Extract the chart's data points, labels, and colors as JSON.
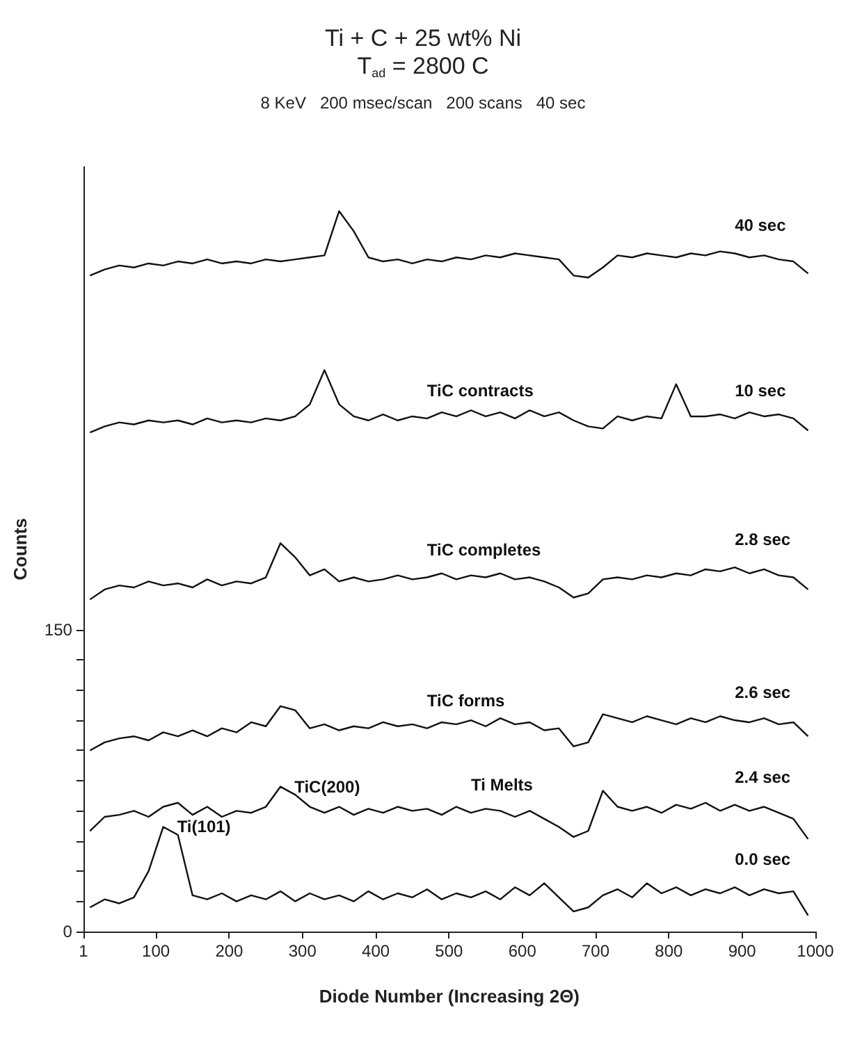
{
  "chart_data": {
    "type": "line",
    "title": "Ti + C + 25 wt% Ni",
    "subtitle": "T$_{ad}$ = 2800 C",
    "xlabel": "Diode Number (Increasing 2Θ)",
    "ylabel": "Counts",
    "x": [
      10,
      30,
      50,
      70,
      90,
      110,
      130,
      150,
      170,
      190,
      210,
      230,
      250,
      270,
      290,
      310,
      330,
      350,
      370,
      390,
      410,
      430,
      450,
      470,
      490,
      510,
      530,
      550,
      570,
      590,
      610,
      630,
      650,
      670,
      690,
      710,
      730,
      750,
      770,
      790,
      810,
      830,
      850,
      870,
      890,
      910,
      930,
      950,
      970,
      990
    ],
    "series": [
      {
        "name": "40 sec",
        "color": "#111111",
        "values": [
          326,
          329,
          331,
          330,
          332,
          331,
          333,
          332,
          334,
          332,
          333,
          332,
          334,
          333,
          334,
          335,
          336,
          358,
          348,
          335,
          333,
          334,
          332,
          334,
          333,
          335,
          334,
          336,
          335,
          337,
          336,
          335,
          334,
          326,
          325,
          330,
          336,
          335,
          337,
          336,
          335,
          337,
          336,
          338,
          337,
          335,
          336,
          334,
          333,
          327
        ]
      },
      {
        "name": "10 sec",
        "color": "#111111",
        "values": [
          248,
          251,
          253,
          252,
          254,
          253,
          254,
          252,
          255,
          253,
          254,
          253,
          255,
          254,
          256,
          262,
          279,
          262,
          256,
          254,
          257,
          254,
          256,
          255,
          258,
          256,
          259,
          256,
          258,
          255,
          259,
          256,
          258,
          254,
          251,
          250,
          256,
          254,
          256,
          255,
          272,
          256,
          256,
          257,
          255,
          258,
          256,
          257,
          255,
          249
        ]
      },
      {
        "name": "2.8 sec",
        "color": "#111111",
        "values": [
          165,
          170,
          172,
          171,
          174,
          172,
          173,
          171,
          175,
          172,
          174,
          173,
          176,
          193,
          186,
          177,
          180,
          174,
          176,
          174,
          175,
          177,
          175,
          176,
          178,
          175,
          177,
          176,
          178,
          175,
          176,
          174,
          171,
          166,
          168,
          175,
          176,
          175,
          177,
          176,
          178,
          177,
          180,
          179,
          181,
          178,
          180,
          177,
          176,
          170
        ]
      },
      {
        "name": "2.6 sec",
        "color": "#111111",
        "values": [
          90,
          94,
          96,
          97,
          95,
          99,
          97,
          100,
          97,
          101,
          99,
          104,
          102,
          112,
          110,
          101,
          103,
          100,
          102,
          101,
          104,
          102,
          103,
          101,
          104,
          103,
          105,
          102,
          106,
          103,
          104,
          100,
          101,
          92,
          94,
          108,
          106,
          104,
          107,
          105,
          103,
          106,
          104,
          107,
          105,
          104,
          106,
          103,
          104,
          97
        ]
      },
      {
        "name": "2.4 sec",
        "color": "#111111",
        "values": [
          50,
          57,
          58,
          60,
          57,
          62,
          64,
          58,
          62,
          57,
          60,
          59,
          62,
          72,
          68,
          62,
          59,
          62,
          58,
          61,
          59,
          62,
          60,
          61,
          58,
          62,
          59,
          61,
          60,
          57,
          60,
          56,
          52,
          47,
          50,
          70,
          62,
          60,
          62,
          59,
          63,
          61,
          64,
          60,
          63,
          60,
          62,
          59,
          56,
          46
        ]
      },
      {
        "name": "0.0 sec",
        "color": "#111111",
        "values": [
          12,
          16,
          14,
          17,
          30,
          52,
          48,
          18,
          16,
          19,
          15,
          18,
          16,
          20,
          15,
          19,
          16,
          18,
          15,
          20,
          16,
          19,
          17,
          21,
          16,
          19,
          17,
          20,
          16,
          22,
          18,
          24,
          17,
          10,
          12,
          18,
          21,
          17,
          24,
          19,
          22,
          18,
          21,
          19,
          22,
          18,
          21,
          19,
          20,
          8
        ]
      }
    ],
    "xlim": [
      1,
      1000
    ],
    "xticks": [
      1,
      100,
      200,
      300,
      400,
      500,
      600,
      700,
      800,
      900,
      1000
    ],
    "ylim": [
      0,
      380
    ],
    "yticks": [
      0,
      {
        "value": 15,
        "label": null
      },
      {
        "value": 30,
        "label": null
      },
      {
        "value": 45,
        "label": null
      },
      {
        "value": 60,
        "label": null
      },
      {
        "value": 75,
        "label": null
      },
      {
        "value": 90,
        "label": null
      },
      {
        "value": 105,
        "label": null
      },
      {
        "value": 120,
        "label": null
      },
      {
        "value": 135,
        "label": null
      },
      150
    ],
    "grid": false,
    "legend": false,
    "marker": "none",
    "line_style": "solid",
    "annotations": [
      "8 KeV   200 msec/scan   200 scans   40 sec",
      {
        "text": "TiC contracts",
        "x": 470,
        "y": 255
      },
      {
        "text": "TiC completes",
        "x": 470,
        "y": 176
      },
      {
        "text": "TiC forms",
        "x": 470,
        "y": 101
      },
      {
        "text": "Ti Melts",
        "x": 530,
        "y": 59
      },
      {
        "text": "TiC(200)",
        "x": 270,
        "y": 72
      },
      {
        "text": "Ti(101)",
        "x": 110,
        "y": 52
      }
    ]
  }
}
